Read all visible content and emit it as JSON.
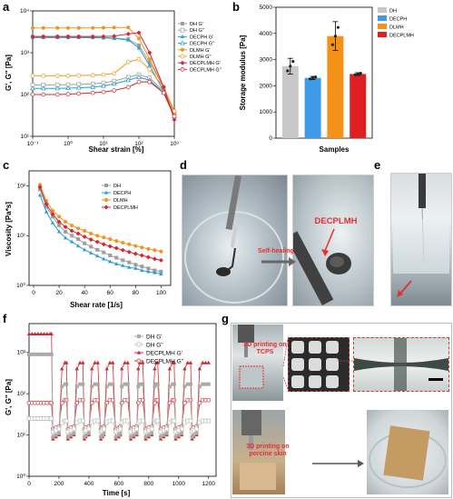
{
  "panels": {
    "a": {
      "letter": "a",
      "xlabel": "Shear strain [%]",
      "ylabel": "G', G'' [Pa]",
      "xticks": [
        "10⁻¹",
        "10⁰",
        "10¹",
        "10²",
        "10³"
      ],
      "yticks": [
        "10¹",
        "10²",
        "10³",
        "10⁴"
      ],
      "legend": [
        "DH G'",
        "DH G''",
        "DECPH G'",
        "DECPH G''",
        "DLMH G'",
        "DLMH G''",
        "DECPLMH G'",
        "DECPLMH G''"
      ]
    },
    "b": {
      "letter": "b",
      "xlabel": "Samples",
      "ylabel": "Storage modulus [Pa]",
      "yticks": [
        "0",
        "1000",
        "2000",
        "3000",
        "4000",
        "5000"
      ],
      "legend": [
        "DH",
        "DECPH",
        "DLMH",
        "DECPLMH"
      ]
    },
    "c": {
      "letter": "c",
      "xlabel": "Shear rate [1/s]",
      "ylabel": "Viscosity [Pa*s]",
      "xticks": [
        "0",
        "20",
        "40",
        "60",
        "80",
        "100"
      ],
      "yticks": [
        "10⁰",
        "10¹",
        "10²"
      ],
      "legend": [
        "DH",
        "DECPH",
        "DLMH",
        "DECPLMH"
      ]
    },
    "d": {
      "letter": "d",
      "annotation_left": "Self-healing",
      "annotation_right": "DECPLMH"
    },
    "e": {
      "letter": "e"
    },
    "f": {
      "letter": "f",
      "xlabel": "Time [s]",
      "ylabel": "G', G'' [Pa]",
      "xticks": [
        "0",
        "200",
        "400",
        "600",
        "800",
        "1000",
        "1200"
      ],
      "yticks": [
        "10⁰",
        "10¹",
        "10²",
        "10³"
      ],
      "legend": [
        "DH G'",
        "DH G''",
        "DECPLMH G'",
        "DECPLMH G''"
      ]
    },
    "g": {
      "letter": "g",
      "label_top": "3D printing on TCPS",
      "label_bottom": "3D printing on porcine skin"
    }
  },
  "colors": {
    "DH": "#9e9e9e",
    "DECPH": "#2a9fd6",
    "DLMH": "#f0961e",
    "DECPLMH": "#d4282e",
    "bar_DH": "#c8c8c8",
    "bar_DECPH": "#3f9be8",
    "bar_DLMH": "#f39118",
    "bar_DECPLMH": "#e02020"
  },
  "chart_data": [
    {
      "panel": "a",
      "type": "line",
      "x_scale": "log",
      "y_scale": "log",
      "xlim": [
        0.1,
        1000
      ],
      "ylim": [
        10,
        10000
      ],
      "x": [
        0.1,
        0.2,
        0.5,
        1,
        2,
        5,
        10,
        20,
        50,
        100,
        200,
        500,
        1000
      ],
      "series": [
        {
          "name": "DH G'",
          "values": [
            2400,
            2400,
            2400,
            2400,
            2380,
            2350,
            2300,
            2250,
            2100,
            1500,
            600,
            150,
            40
          ]
        },
        {
          "name": "DH G''",
          "values": [
            170,
            170,
            170,
            172,
            175,
            180,
            190,
            210,
            260,
            300,
            250,
            120,
            35
          ]
        },
        {
          "name": "DECPH G'",
          "values": [
            2300,
            2300,
            2300,
            2300,
            2290,
            2280,
            2260,
            2200,
            2000,
            1300,
            500,
            120,
            30
          ]
        },
        {
          "name": "DECPH G''",
          "values": [
            140,
            140,
            140,
            142,
            145,
            150,
            160,
            180,
            220,
            260,
            220,
            110,
            30
          ]
        },
        {
          "name": "DLMH G'",
          "values": [
            3900,
            3900,
            3900,
            3900,
            3900,
            3900,
            3950,
            4000,
            4000,
            2200,
            700,
            150,
            35
          ]
        },
        {
          "name": "DLMH G''",
          "values": [
            280,
            280,
            280,
            282,
            285,
            290,
            300,
            320,
            600,
            700,
            400,
            150,
            40
          ]
        },
        {
          "name": "DECPLMH G'",
          "values": [
            2450,
            2450,
            2450,
            2450,
            2450,
            2450,
            2450,
            2500,
            2800,
            3000,
            1000,
            150,
            25
          ]
        },
        {
          "name": "DECPLMH G''",
          "values": [
            100,
            100,
            100,
            102,
            105,
            110,
            115,
            125,
            150,
            200,
            200,
            110,
            30
          ]
        }
      ]
    },
    {
      "panel": "b",
      "type": "bar",
      "categories": [
        "DH",
        "DECPH",
        "DLMH",
        "DECPLMH"
      ],
      "values": [
        2750,
        2300,
        3900,
        2450
      ],
      "errors": [
        300,
        60,
        550,
        50
      ],
      "ylim": [
        0,
        5000
      ]
    },
    {
      "panel": "c",
      "type": "line",
      "y_scale": "log",
      "xlim": [
        0,
        100
      ],
      "ylim": [
        1,
        200
      ],
      "x": [
        5,
        10,
        15,
        20,
        25,
        30,
        35,
        40,
        45,
        50,
        55,
        60,
        65,
        70,
        75,
        80,
        85,
        90,
        95,
        100
      ],
      "series": [
        {
          "name": "DH",
          "values": [
            85,
            38,
            24,
            16,
            12,
            10,
            8.5,
            7.0,
            6.0,
            5.2,
            4.6,
            4.0,
            3.6,
            3.2,
            2.9,
            2.6,
            2.4,
            2.2,
            2.0,
            1.9
          ]
        },
        {
          "name": "DECPH",
          "values": [
            65,
            30,
            18,
            12,
            9,
            7.5,
            6.2,
            5.2,
            4.5,
            3.9,
            3.4,
            3.0,
            2.7,
            2.5,
            2.3,
            2.2,
            2.0,
            1.9,
            1.8,
            1.7
          ]
        },
        {
          "name": "DLMH",
          "values": [
            105,
            50,
            32,
            24,
            19,
            16,
            14,
            12.5,
            11,
            10,
            9.2,
            8.5,
            7.8,
            7.2,
            6.7,
            6.2,
            5.8,
            5.4,
            5.1,
            4.8
          ]
        },
        {
          "name": "DECPLMH",
          "values": [
            95,
            43,
            27,
            19,
            15,
            12.5,
            11,
            9.5,
            8.3,
            7.5,
            6.7,
            6.1,
            5.6,
            5.1,
            4.7,
            4.3,
            4.0,
            3.7,
            3.4,
            3.2
          ]
        }
      ]
    },
    {
      "panel": "f",
      "type": "line",
      "y_scale": "log",
      "xlim": [
        0,
        1250
      ],
      "ylim": [
        1,
        5000
      ],
      "x": [
        0,
        20,
        40,
        60,
        80,
        100,
        120,
        140,
        150,
        160,
        180,
        200,
        220,
        240,
        250,
        260,
        280,
        300,
        320,
        340,
        360,
        370,
        380,
        400,
        420,
        440,
        460,
        480,
        490,
        500,
        520,
        540,
        560,
        580,
        600,
        610,
        620,
        640,
        660,
        680,
        700,
        720,
        730,
        740,
        760,
        780,
        800,
        820,
        840,
        850,
        860,
        880,
        900,
        920,
        940,
        960,
        970,
        980,
        1000,
        1020,
        1040,
        1060,
        1080,
        1090,
        1100,
        1120,
        1140,
        1160,
        1180,
        1200
      ],
      "series": [
        {
          "name": "DECPLMH G'",
          "values": [
            2800,
            2800,
            2800,
            2800,
            2800,
            2800,
            2800,
            2800,
            2800,
            8,
            9,
            10,
            400,
            560,
            560,
            8,
            9,
            10,
            400,
            560,
            560,
            8,
            9,
            10,
            400,
            560,
            560,
            8,
            9,
            10,
            400,
            560,
            560,
            8,
            9,
            10,
            400,
            560,
            560,
            8,
            9,
            10,
            400,
            560,
            560,
            8,
            9,
            10,
            400,
            560,
            560,
            8,
            9,
            10,
            400,
            560,
            560,
            8,
            9,
            10,
            400,
            560,
            560,
            8,
            9,
            10,
            400,
            560,
            560,
            560
          ]
        },
        {
          "name": "DECPLMH G''",
          "values": [
            60,
            60,
            60,
            60,
            60,
            60,
            60,
            60,
            60,
            14,
            15,
            16,
            60,
            70,
            70,
            14,
            15,
            16,
            60,
            70,
            70,
            14,
            15,
            16,
            60,
            70,
            70,
            14,
            15,
            16,
            60,
            70,
            70,
            14,
            15,
            16,
            60,
            70,
            70,
            14,
            15,
            16,
            60,
            70,
            70,
            14,
            15,
            16,
            60,
            70,
            70,
            14,
            15,
            16,
            60,
            70,
            70,
            14,
            15,
            16,
            60,
            70,
            70,
            14,
            15,
            16,
            60,
            70,
            70,
            70
          ]
        },
        {
          "name": "DH G'",
          "values": [
            900,
            900,
            900,
            900,
            900,
            900,
            900,
            900,
            900,
            9,
            10,
            11,
            150,
            170,
            170,
            9,
            10,
            11,
            150,
            170,
            170,
            9,
            10,
            11,
            150,
            170,
            170,
            9,
            10,
            11,
            150,
            170,
            170,
            9,
            10,
            11,
            150,
            170,
            170,
            9,
            10,
            11,
            150,
            170,
            170,
            9,
            10,
            11,
            150,
            170,
            170,
            9,
            10,
            11,
            150,
            170,
            170,
            9,
            10,
            11,
            150,
            170,
            170,
            9,
            10,
            11,
            150,
            170,
            170,
            170
          ]
        },
        {
          "name": "DH G''",
          "values": [
            25,
            25,
            25,
            25,
            25,
            25,
            25,
            25,
            25,
            12,
            13,
            14,
            20,
            22,
            22,
            12,
            13,
            14,
            20,
            22,
            22,
            12,
            13,
            14,
            20,
            22,
            22,
            12,
            13,
            14,
            20,
            22,
            22,
            12,
            13,
            14,
            20,
            22,
            22,
            12,
            13,
            14,
            20,
            22,
            22,
            12,
            13,
            14,
            20,
            22,
            22,
            12,
            13,
            14,
            20,
            22,
            22,
            12,
            13,
            14,
            20,
            22,
            22,
            12,
            13,
            14,
            20,
            22,
            22,
            22
          ]
        }
      ]
    }
  ]
}
